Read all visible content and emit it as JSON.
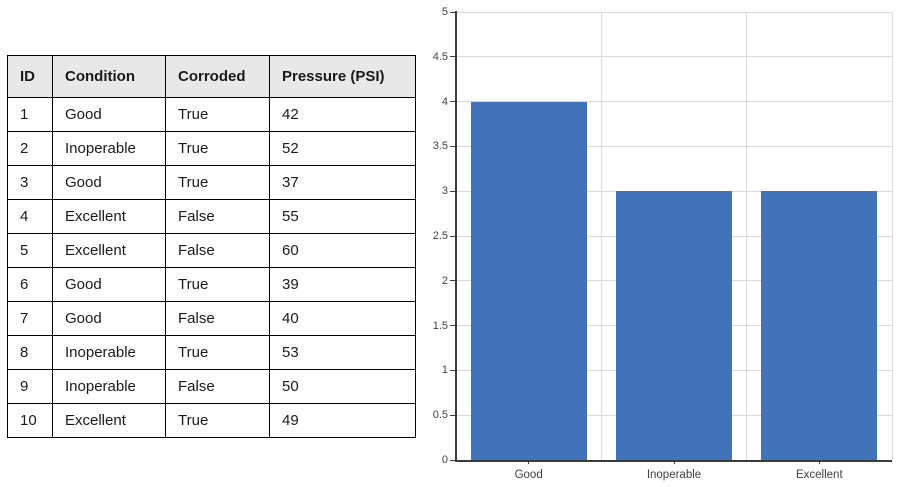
{
  "table": {
    "headers": [
      "ID",
      "Condition",
      "Corroded",
      "Pressure (PSI)"
    ],
    "rows": [
      [
        "1",
        "Good",
        "True",
        "42"
      ],
      [
        "2",
        "Inoperable",
        "True",
        "52"
      ],
      [
        "3",
        "Good",
        "True",
        "37"
      ],
      [
        "4",
        "Excellent",
        "False",
        "55"
      ],
      [
        "5",
        "Excellent",
        "False",
        "60"
      ],
      [
        "6",
        "Good",
        "True",
        "39"
      ],
      [
        "7",
        "Good",
        "False",
        "40"
      ],
      [
        "8",
        "Inoperable",
        "True",
        "53"
      ],
      [
        "9",
        "Inoperable",
        "False",
        "50"
      ],
      [
        "10",
        "Excellent",
        "True",
        "49"
      ]
    ]
  },
  "chart_data": {
    "type": "bar",
    "title": "",
    "categories": [
      "Good",
      "Inoperable",
      "Excellent"
    ],
    "values": [
      4,
      3,
      3
    ],
    "xlabel": "",
    "ylabel": "",
    "ylim": [
      0,
      5
    ],
    "ytick_step": 0.5,
    "grid": true,
    "legend": false,
    "bar_color": "#4272B7",
    "gridline_color": "#D9D9D9",
    "axis_color": "#3B3B3B",
    "label_color": "#404040"
  }
}
